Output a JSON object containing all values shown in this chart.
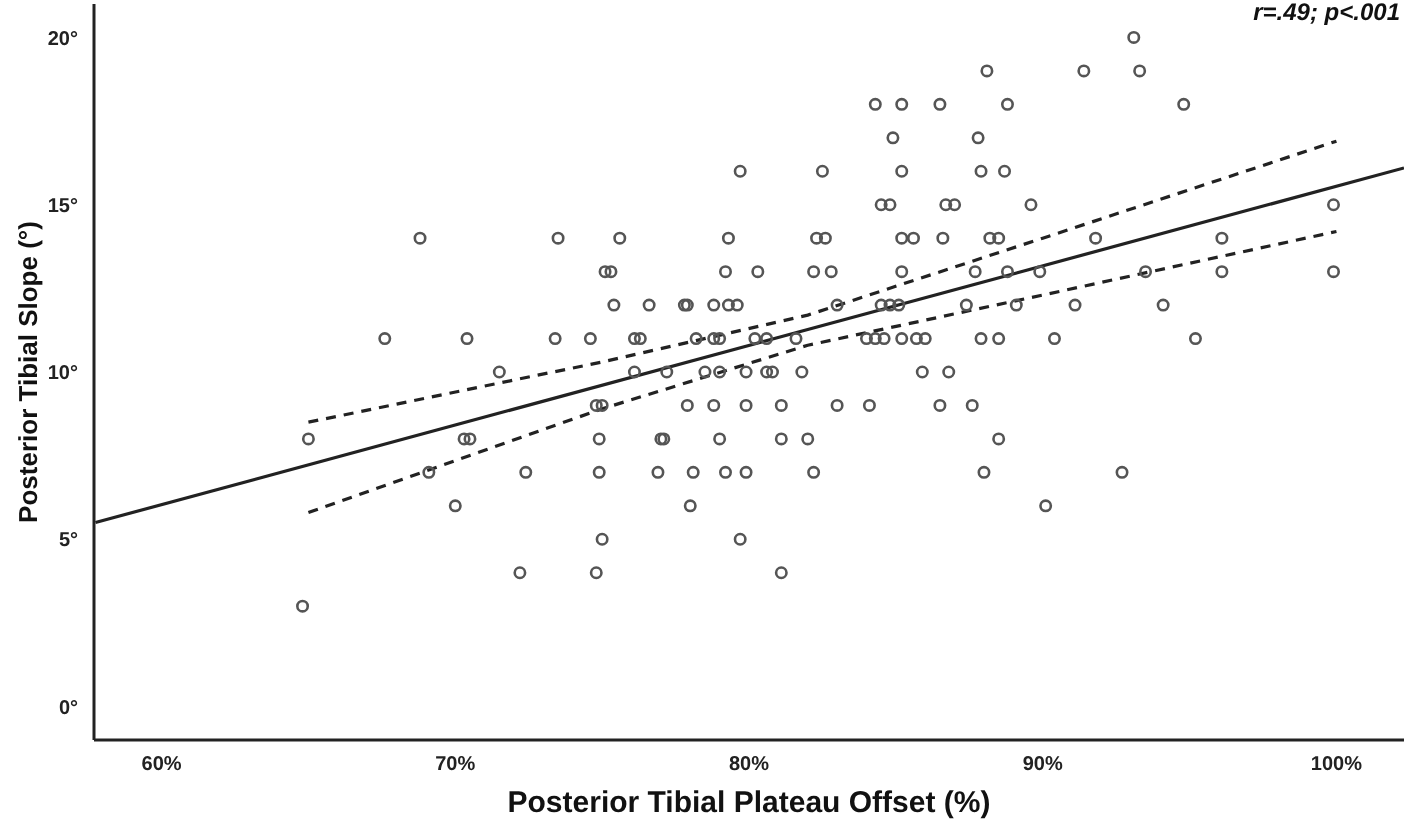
{
  "chart_data": {
    "type": "scatter",
    "xlabel": "Posterior Tibial Plateau Offset (%)",
    "ylabel": "Posterior Tibial Slope (°)",
    "annotations": [
      "r=.49; p<.001"
    ],
    "xlim": [
      57.7,
      102.3
    ],
    "xticks": [
      {
        "value": 60,
        "label": "60%"
      },
      {
        "value": 70,
        "label": "70%"
      },
      {
        "value": 80,
        "label": "80%"
      },
      {
        "value": 90,
        "label": "90%"
      },
      {
        "value": 100,
        "label": "100%"
      }
    ],
    "ylim": [
      -1,
      21
    ],
    "yticks": [
      {
        "value": 0,
        "label": "0°"
      },
      {
        "value": 5,
        "label": "5°"
      },
      {
        "value": 10,
        "label": "10°"
      },
      {
        "value": 15,
        "label": "15°"
      },
      {
        "value": 20,
        "label": "20°"
      }
    ],
    "grid": false,
    "legend": false,
    "series": [
      {
        "marker": "circle",
        "color": "#555555",
        "x": [
          93.1,
          88.1,
          91.4,
          93.3,
          84.3,
          85.2,
          86.5,
          88.8,
          94.8,
          84.9,
          87.8,
          79.7,
          82.5,
          85.2,
          87.9,
          88.7,
          84.5,
          84.8,
          86.7,
          87.0,
          89.6,
          99.9,
          68.8,
          73.5,
          75.6,
          79.3,
          82.3,
          82.6,
          85.2,
          85.6,
          86.6,
          88.2,
          88.5,
          91.8,
          96.1,
          75.1,
          75.3,
          79.2,
          80.3,
          82.2,
          82.8,
          85.2,
          87.7,
          88.8,
          89.9,
          93.5,
          96.1,
          99.9,
          75.4,
          76.6,
          77.8,
          77.9,
          78.8,
          79.3,
          79.6,
          83.0,
          84.5,
          84.8,
          85.1,
          87.4,
          89.1,
          91.1,
          94.1,
          67.6,
          70.4,
          73.4,
          74.6,
          76.1,
          76.3,
          78.2,
          78.8,
          79.0,
          80.2,
          80.6,
          81.6,
          84.0,
          84.3,
          84.6,
          85.2,
          85.7,
          86.0,
          87.9,
          88.5,
          90.4,
          95.2,
          71.5,
          76.1,
          77.2,
          78.5,
          79.0,
          79.9,
          80.6,
          80.8,
          81.8,
          85.9,
          86.8,
          74.8,
          75.0,
          77.9,
          78.8,
          79.9,
          81.1,
          83.0,
          84.1,
          86.5,
          87.6,
          65.0,
          70.3,
          70.5,
          74.9,
          77.0,
          77.1,
          79.0,
          81.1,
          82.0,
          88.5,
          69.1,
          72.4,
          74.9,
          76.9,
          78.1,
          79.2,
          79.9,
          82.2,
          88.0,
          92.7,
          70.0,
          78.0,
          90.1,
          75.0,
          79.7,
          72.2,
          74.8,
          81.1,
          64.8
        ],
        "values": [
          20,
          19,
          19,
          19,
          18,
          18,
          18,
          18,
          18,
          17,
          17,
          16,
          16,
          16,
          16,
          16,
          15,
          15,
          15,
          15,
          15,
          15,
          14,
          14,
          14,
          14,
          14,
          14,
          14,
          14,
          14,
          14,
          14,
          14,
          14,
          13,
          13,
          13,
          13,
          13,
          13,
          13,
          13,
          13,
          13,
          13,
          13,
          13,
          12,
          12,
          12,
          12,
          12,
          12,
          12,
          12,
          12,
          12,
          12,
          12,
          12,
          12,
          12,
          11,
          11,
          11,
          11,
          11,
          11,
          11,
          11,
          11,
          11,
          11,
          11,
          11,
          11,
          11,
          11,
          11,
          11,
          11,
          11,
          11,
          11,
          10,
          10,
          10,
          10,
          10,
          10,
          10,
          10,
          10,
          10,
          10,
          9,
          9,
          9,
          9,
          9,
          9,
          9,
          9,
          9,
          9,
          8,
          8,
          8,
          8,
          8,
          8,
          8,
          8,
          8,
          8,
          7,
          7,
          7,
          7,
          7,
          7,
          7,
          7,
          7,
          7,
          6,
          6,
          6,
          5,
          5,
          4,
          4,
          4,
          3
        ]
      },
      {
        "type": "line",
        "marker": "none",
        "color": "#222222",
        "line_style": "solid",
        "x": [
          57.75,
          102.3
        ],
        "values": [
          5.5,
          16.1
        ]
      },
      {
        "type": "line",
        "color": "#222222",
        "line_style": "dashed",
        "marker": "none",
        "x": [
          65,
          75,
          82,
          90,
          100
        ],
        "values": [
          8.5,
          10.3,
          11.7,
          14.0,
          16.9
        ]
      },
      {
        "type": "line",
        "color": "#222222",
        "line_style": "dashed",
        "marker": "none",
        "x": [
          65,
          75,
          82,
          90,
          100
        ],
        "values": [
          5.8,
          8.9,
          10.8,
          12.3,
          14.2
        ]
      }
    ]
  }
}
